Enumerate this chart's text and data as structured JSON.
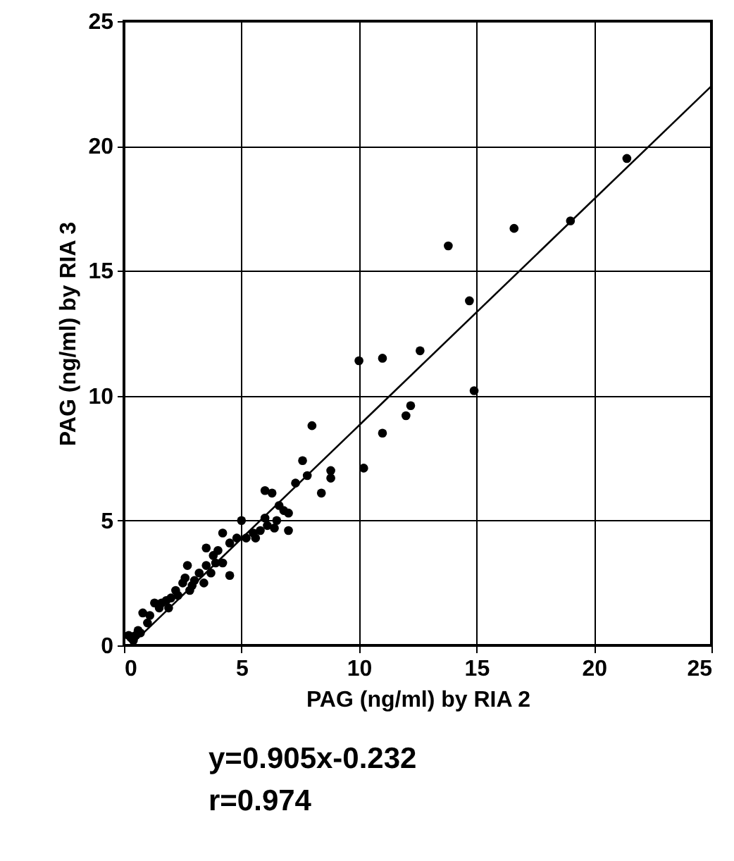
{
  "chart_data": {
    "type": "scatter",
    "xlabel": "PAG (ng/ml) by RIA 2",
    "ylabel": "PAG (ng/ml) by RIA 3",
    "xlim": [
      0,
      25
    ],
    "ylim": [
      0,
      25
    ],
    "xticks": [
      0,
      5,
      10,
      15,
      20,
      25
    ],
    "yticks": [
      0,
      5,
      10,
      15,
      20,
      25
    ],
    "grid": true,
    "marker": "circle",
    "series": [
      {
        "color": "#000000",
        "x": [
          21.4,
          19,
          16.6,
          13.8,
          14.7,
          14.9,
          12.6,
          11,
          10,
          12.2,
          12,
          11,
          10.2,
          8,
          8.8,
          8.8,
          8.4,
          7.6,
          7.8,
          7.3,
          7,
          6,
          6.3,
          6.8,
          7,
          6.5,
          6,
          6.4,
          5.8,
          5.5,
          5,
          5.2,
          4.8,
          4.5,
          4.2,
          4,
          3.8,
          4.2,
          4.5,
          3.9,
          3.5,
          3.5,
          3.2,
          3.4,
          3,
          2.7,
          2.8,
          2.5,
          2.3,
          2.2,
          2,
          1.8,
          1.6,
          1.5,
          1.3,
          1.1,
          1,
          0.8,
          0.6,
          0.5,
          0.3,
          0.4,
          0.2,
          0.7,
          2.6,
          3.7,
          2.9,
          1.9,
          5.6,
          6.6,
          6.1
        ],
        "values": [
          19.5,
          17,
          16.7,
          16,
          13.8,
          10.2,
          11.8,
          11.5,
          11.4,
          9.6,
          9.2,
          8.5,
          7.1,
          8.8,
          7,
          6.7,
          6.1,
          7.4,
          6.8,
          6.5,
          4.6,
          6.2,
          6.1,
          5.4,
          5.3,
          5,
          5.1,
          4.7,
          4.6,
          4.5,
          5,
          4.3,
          4.3,
          4.1,
          4.5,
          3.8,
          3.6,
          3.3,
          2.8,
          3.3,
          3.9,
          3.2,
          2.9,
          2.5,
          2.6,
          3.2,
          2.2,
          2.5,
          2,
          2.2,
          1.9,
          1.8,
          1.7,
          1.5,
          1.7,
          1.2,
          0.9,
          1.3,
          0.6,
          0.4,
          0.3,
          0.2,
          0.4,
          0.5,
          2.7,
          2.9,
          2.4,
          1.5,
          4.3,
          5.6,
          4.8
        ]
      },
      {
        "type": "line",
        "marker": "none",
        "color": "#000000",
        "x": [
          0.5,
          25
        ],
        "values": [
          0.2,
          22.4
        ]
      }
    ],
    "annotations": [
      "y=0.905x-0.232",
      "r=0.974"
    ]
  }
}
